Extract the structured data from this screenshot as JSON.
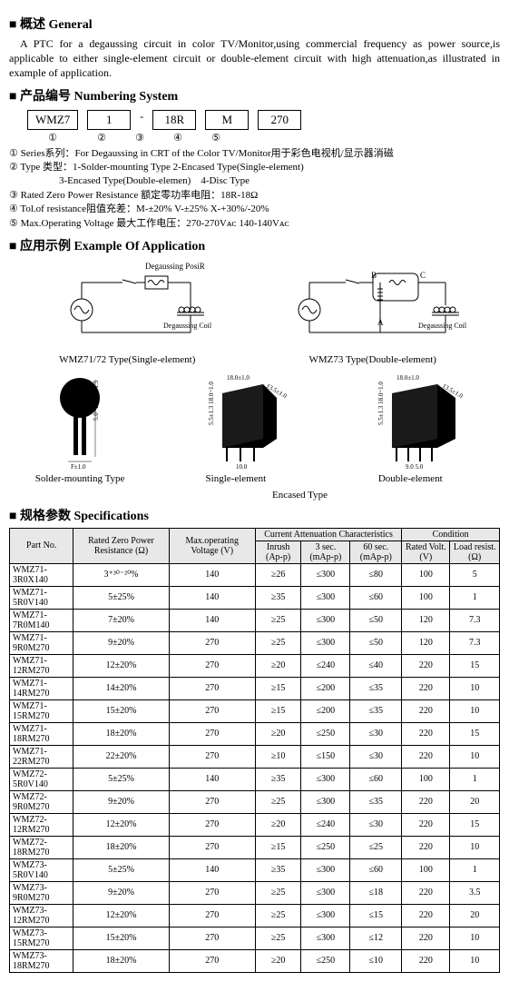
{
  "sections": {
    "general_title": "概述 General",
    "general_text": "A PTC for a degaussing circuit in color TV/Monitor,using commercial frequency as power source,is applicable to either single-element circuit or double-element circuit with high attenuation,as illustrated in example of application.",
    "numbering_title": "产品编号 Numbering System",
    "application_title": "应用示例 Example Of Application",
    "spec_title": "规格参数 Specifications"
  },
  "numbering": {
    "boxes": [
      "WMZ7",
      "1",
      "18R",
      "M",
      "270"
    ],
    "sep": "-",
    "indices": [
      "①",
      "②",
      "③",
      "④",
      "⑤"
    ],
    "legend": [
      "① Series系列：For Degaussing in CRT of the Color TV/Monitor用于彩色电视机/显示器消磁",
      "② Type 类型：1-Solder-mounting Type            2-Encased Type(Single-element)",
      "                    3-Encased Type(Double-elemen)    4-Disc Type",
      "③ Rated Zero Power Resistance 额定零功率电阻：18R-18Ω",
      "④ Tol.of resistance阻值充差：M-±20%    V-±25%    X-+30%/-20%",
      "⑤ Max.Operating Voltage 最大工作电压：270-270Vᴀᴄ  140-140Vᴀᴄ"
    ]
  },
  "diagrams": {
    "d1_label1": "Degaussing PosiR",
    "d1_label2": "Degaussing Coil",
    "d1_caption": "WMZ71/72 Type(Single-element)",
    "d2_labelB": "B",
    "d2_labelC": "C",
    "d2_labelA": "A",
    "d2_label2": "Degaussing Coil",
    "d2_caption": "WMZ73 Type(Double-element)"
  },
  "types": {
    "t1_caption": "Solder-mounting Type",
    "t1_dim_h": "5.0~1.0 5.5~1.5",
    "t1_dim_w": "F±1.0",
    "t2_caption": "Single-element",
    "t2_dim1": "18.0±1.0",
    "t2_dim2": "13.5±1.0",
    "t2_dim3": "5.5±1.3 18.0~1.0",
    "t2_dim4": "10.0",
    "t3_caption": "Double-element",
    "t3_dim1": "18.0±1.0",
    "t3_dim2": "13.5±1.0",
    "t3_dim3": "5.5±1.3 18.0~1.0",
    "t3_dim4": "9.0 5.0",
    "encased_caption": "Encased Type"
  },
  "spec_headers": {
    "r1c1": "Part No.",
    "r1c2": "Rated Zero Power Resistance (Ω)",
    "r1c3": "Max.operating Voltage (V)",
    "r1c4": "Current Attenuation Characteristics",
    "r1c5": "Condition",
    "r2c4a": "Inrush (Ap-p)",
    "r2c4b": "3 sec. (mAp-p)",
    "r2c4c": "60 sec. (mAp-p)",
    "r2c5a": "Rated Volt. (V)",
    "r2c5b": "Load resist. (Ω)"
  },
  "spec_rows": [
    [
      "WMZ71-3R0X140",
      "3⁺³⁰⁻²⁰%",
      "140",
      "≥26",
      "≤300",
      "≤80",
      "100",
      "5"
    ],
    [
      "WMZ71-5R0V140",
      "5±25%",
      "140",
      "≥35",
      "≤300",
      "≤60",
      "100",
      "1"
    ],
    [
      "WMZ71-7R0M140",
      "7±20%",
      "140",
      "≥25",
      "≤300",
      "≤50",
      "120",
      "7.3"
    ],
    [
      "WMZ71-9R0M270",
      "9±20%",
      "270",
      "≥25",
      "≤300",
      "≤50",
      "120",
      "7.3"
    ],
    [
      "WMZ71-12RM270",
      "12±20%",
      "270",
      "≥20",
      "≤240",
      "≤40",
      "220",
      "15"
    ],
    [
      "WMZ71-14RM270",
      "14±20%",
      "270",
      "≥15",
      "≤200",
      "≤35",
      "220",
      "10"
    ],
    [
      "WMZ71-15RM270",
      "15±20%",
      "270",
      "≥15",
      "≤200",
      "≤35",
      "220",
      "10"
    ],
    [
      "WMZ71-18RM270",
      "18±20%",
      "270",
      "≥20",
      "≤250",
      "≤30",
      "220",
      "15"
    ],
    [
      "WMZ71-22RM270",
      "22±20%",
      "270",
      "≥10",
      "≤150",
      "≤30",
      "220",
      "10"
    ],
    [
      "WMZ72-5R0V140",
      "5±25%",
      "140",
      "≥35",
      "≤300",
      "≤60",
      "100",
      "1"
    ],
    [
      "WMZ72-9R0M270",
      "9±20%",
      "270",
      "≥25",
      "≤300",
      "≤35",
      "220",
      "20"
    ],
    [
      "WMZ72-12RM270",
      "12±20%",
      "270",
      "≥20",
      "≤240",
      "≤30",
      "220",
      "15"
    ],
    [
      "WMZ72-18RM270",
      "18±20%",
      "270",
      "≥15",
      "≤250",
      "≤25",
      "220",
      "10"
    ],
    [
      "WMZ73-5R0V140",
      "5±25%",
      "140",
      "≥35",
      "≤300",
      "≤60",
      "100",
      "1"
    ],
    [
      "WMZ73-9R0M270",
      "9±20%",
      "270",
      "≥25",
      "≤300",
      "≤18",
      "220",
      "3.5"
    ],
    [
      "WMZ73-12RM270",
      "12±20%",
      "270",
      "≥25",
      "≤300",
      "≤15",
      "220",
      "20"
    ],
    [
      "WMZ73-15RM270",
      "15±20%",
      "270",
      "≥25",
      "≤300",
      "≤12",
      "220",
      "10"
    ],
    [
      "WMZ73-18RM270",
      "18±20%",
      "270",
      "≥20",
      "≤250",
      "≤10",
      "220",
      "10"
    ]
  ]
}
